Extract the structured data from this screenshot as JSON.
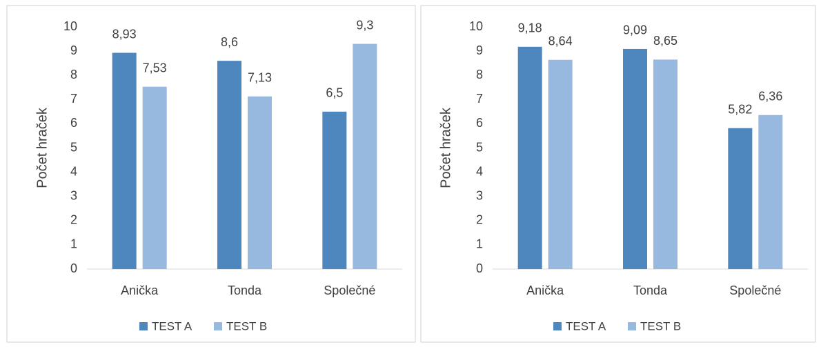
{
  "chart_data": [
    {
      "type": "bar",
      "ylabel": "Počet hraček",
      "categories": [
        "Anička",
        "Tonda",
        "Společné"
      ],
      "series": [
        {
          "name": "TEST A",
          "color": "#4e86be",
          "values": [
            8.93,
            8.6,
            6.5
          ],
          "value_labels": [
            "8,93",
            "8,6",
            "6,5"
          ]
        },
        {
          "name": "TEST B",
          "color": "#97b9e0",
          "values": [
            7.53,
            7.13,
            9.3
          ],
          "value_labels": [
            "7,53",
            "7,13",
            "9,3"
          ]
        }
      ],
      "ylim": [
        0,
        10
      ],
      "yticks": [
        0,
        1,
        2,
        3,
        4,
        5,
        6,
        7,
        8,
        9,
        10
      ],
      "grid": false,
      "legend": "bottom"
    },
    {
      "type": "bar",
      "ylabel": "Počet hraček",
      "categories": [
        "Anička",
        "Tonda",
        "Společné"
      ],
      "series": [
        {
          "name": "TEST A",
          "color": "#4e86be",
          "values": [
            9.18,
            9.09,
            5.82
          ],
          "value_labels": [
            "9,18",
            "9,09",
            "5,82"
          ]
        },
        {
          "name": "TEST B",
          "color": "#97b9e0",
          "values": [
            8.64,
            8.65,
            6.36
          ],
          "value_labels": [
            "8,64",
            "8,65",
            "6,36"
          ]
        }
      ],
      "ylim": [
        0,
        10
      ],
      "yticks": [
        0,
        1,
        2,
        3,
        4,
        5,
        6,
        7,
        8,
        9,
        10
      ],
      "grid": false,
      "legend": "bottom"
    }
  ]
}
